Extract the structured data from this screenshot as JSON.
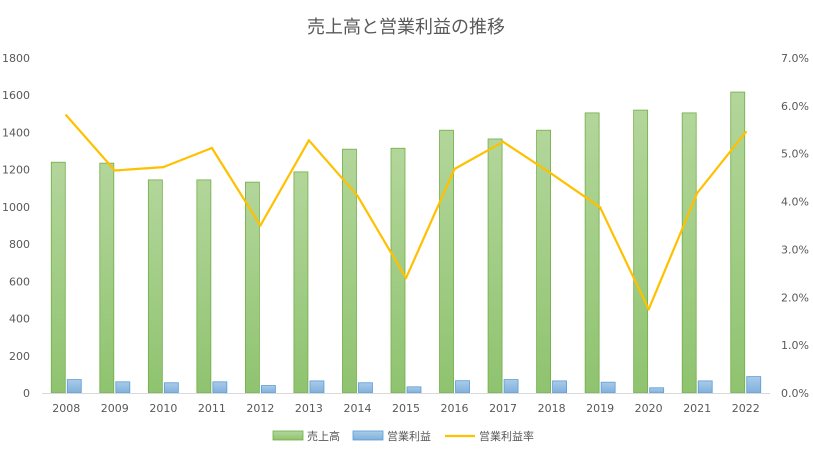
{
  "chart_data": {
    "type": "bar",
    "title": "売上高と営業利益の推移",
    "categories": [
      "2008",
      "2009",
      "2010",
      "2011",
      "2012",
      "2013",
      "2014",
      "2015",
      "2016",
      "2017",
      "2018",
      "2019",
      "2020",
      "2021",
      "2022"
    ],
    "series": [
      {
        "name": "売上高",
        "type": "bar",
        "axis": "left",
        "color": "#a9d18e",
        "values": [
          1240,
          1235,
          1145,
          1145,
          1133,
          1188,
          1310,
          1315,
          1412,
          1365,
          1412,
          1505,
          1520,
          1505,
          1617
        ]
      },
      {
        "name": "営業利益",
        "type": "bar",
        "axis": "left",
        "color": "#9dc3e6",
        "values": [
          72,
          60,
          55,
          60,
          40,
          65,
          55,
          33,
          66,
          72,
          65,
          58,
          28,
          65,
          88
        ]
      },
      {
        "name": "営業利益率",
        "type": "line",
        "axis": "right",
        "color": "#ffc000",
        "values": [
          5.8,
          4.65,
          4.72,
          5.12,
          3.5,
          5.28,
          4.12,
          2.4,
          4.68,
          5.25,
          4.58,
          3.88,
          1.75,
          4.18,
          5.45
        ]
      }
    ],
    "y_left": {
      "ylim": [
        0,
        1800
      ],
      "ticks": [
        "0",
        "200",
        "400",
        "600",
        "800",
        "1000",
        "1200",
        "1400",
        "1600",
        "1800"
      ]
    },
    "y_right": {
      "ylim": [
        0,
        7
      ],
      "ticks": [
        "0.0%",
        "1.0%",
        "2.0%",
        "3.0%",
        "4.0%",
        "5.0%",
        "6.0%",
        "7.0%"
      ]
    },
    "legend": {
      "position": "bottom",
      "entries": [
        "売上高",
        "営業利益",
        "営業利益率"
      ]
    },
    "grid": false
  }
}
